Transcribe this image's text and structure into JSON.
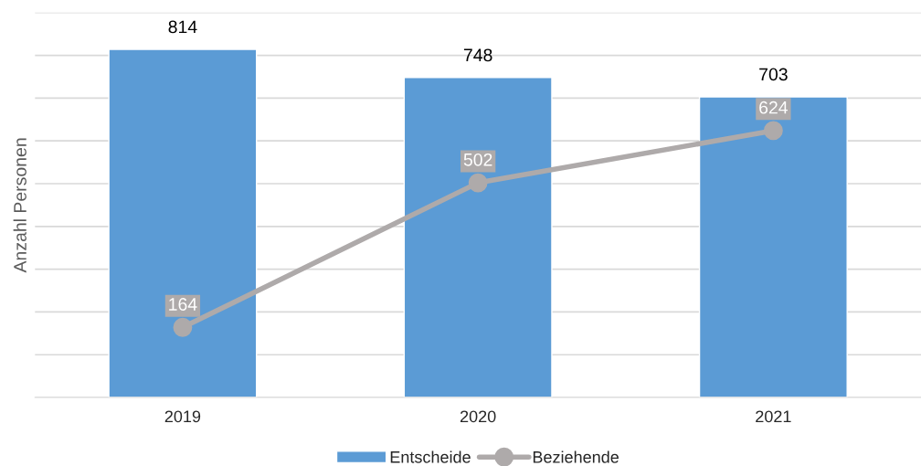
{
  "chart_data": {
    "type": "bar",
    "ylabel": "Anzahl Personen",
    "categories": [
      "2019",
      "2020",
      "2021"
    ],
    "series": [
      {
        "name": "Entscheide",
        "color": "#5b9bd5",
        "values": [
          814,
          748,
          703
        ]
      },
      {
        "name": "Beziehende",
        "type": "line",
        "color": "#aeaaaa",
        "marker": "circle",
        "values": [
          164,
          502,
          624
        ]
      }
    ],
    "ylim": [
      0,
      900
    ],
    "yticks": [
      {
        "value": 0,
        "label": null
      },
      {
        "value": 100,
        "label": null
      },
      {
        "value": 200,
        "label": null
      },
      {
        "value": 300,
        "label": null
      },
      {
        "value": 400,
        "label": null
      },
      {
        "value": 500,
        "label": null
      },
      {
        "value": 600,
        "label": null
      },
      {
        "value": 700,
        "label": null
      },
      {
        "value": 800,
        "label": null
      },
      {
        "value": 900,
        "label": null
      }
    ],
    "tick_labels": "x",
    "grid": "y",
    "legend": "bottom",
    "data_labels": true
  }
}
